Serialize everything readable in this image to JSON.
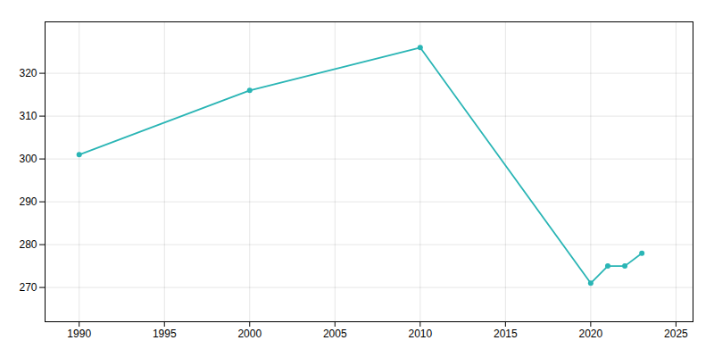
{
  "chart_data": {
    "type": "line",
    "x": [
      1990,
      2000,
      2010,
      2020,
      2021,
      2022,
      2023
    ],
    "values": [
      301,
      316,
      326,
      271,
      275,
      275,
      278
    ],
    "color": "#2ab5b5",
    "marker": "circle",
    "xlim": [
      1988,
      2026
    ],
    "ylim": [
      262,
      332
    ],
    "xticks": [
      1990,
      1995,
      2000,
      2005,
      2010,
      2015,
      2020,
      2025
    ],
    "yticks": [
      270,
      280,
      290,
      300,
      310,
      320
    ],
    "grid": true
  }
}
